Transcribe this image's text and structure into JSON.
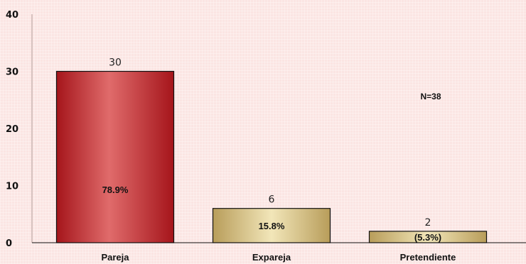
{
  "chart_data": {
    "type": "bar",
    "title": "",
    "xlabel": "",
    "ylabel": "",
    "ylim": [
      0,
      40
    ],
    "yticks": [
      0,
      10,
      20,
      30,
      40
    ],
    "categories": [
      "Pareja",
      "Expareja",
      "Pretendiente"
    ],
    "values": [
      30,
      6,
      2
    ],
    "value_labels": [
      "30",
      "6",
      "2"
    ],
    "percent_labels": [
      "78.9%",
      "15.8%",
      "(5.3%)"
    ],
    "annotation": "N=38",
    "grid": false,
    "legend": "none",
    "colors": [
      "#b51e22",
      "#c8b271",
      "#c8b271"
    ]
  }
}
